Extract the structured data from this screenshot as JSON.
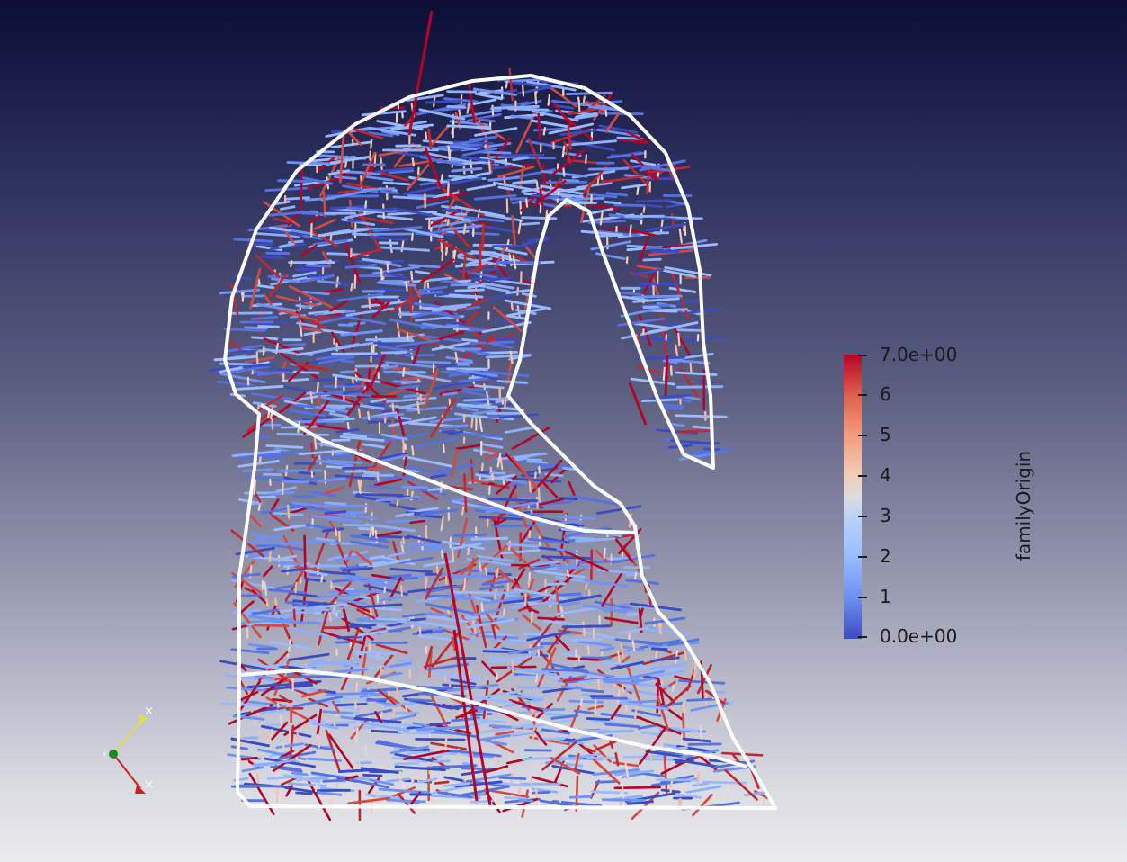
{
  "viewer": {
    "background_top": "#0b0d36",
    "background_bottom": "#ebebed",
    "outline_color": "#ffffff"
  },
  "colorbar": {
    "title": "familyOrigin",
    "labels": [
      "7.0e+00",
      "6",
      "5",
      "4",
      "3",
      "2",
      "1",
      "0.0e+00"
    ],
    "colormap": [
      "#3b4cc0",
      "#6f92f3",
      "#9abbff",
      "#dcdddd",
      "#f49a7b",
      "#dd5f4b",
      "#b40426"
    ],
    "range": [
      0,
      7
    ]
  },
  "orientation_axes": {
    "x_color": "#d0201c",
    "y_color": "#e0e040",
    "z_color": "#1a8a1a"
  }
}
